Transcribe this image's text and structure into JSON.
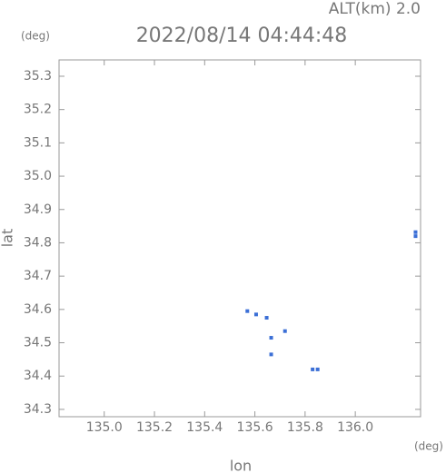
{
  "chart_data": {
    "type": "scatter",
    "altitude_label": "ALT(km) 2.0",
    "title": "2022/08/14 04:44:48",
    "y_unit": "(deg)",
    "x_unit": "(deg)",
    "xlabel": "lon",
    "ylabel": "lat",
    "color": "#3b6fd6",
    "xlim": [
      134.82,
      136.26
    ],
    "ylim": [
      34.278,
      35.349
    ],
    "xticks": [
      {
        "value": 135,
        "label": "135.0"
      },
      135.2,
      135.4,
      135.6,
      135.8,
      {
        "value": 136,
        "label": "136.0"
      }
    ],
    "yticks": [
      35.3,
      35.2,
      35.1,
      {
        "value": 35,
        "label": "35.0"
      },
      34.9,
      34.8,
      34.7,
      34.6,
      34.5,
      34.4,
      34.3
    ],
    "x": [
      135.57,
      135.605,
      135.647,
      135.665,
      135.72,
      135.665,
      135.83,
      135.85,
      136.24,
      136.24
    ],
    "y": [
      34.595,
      34.585,
      34.575,
      34.515,
      34.535,
      34.465,
      34.42,
      34.42,
      34.832,
      34.82
    ]
  }
}
